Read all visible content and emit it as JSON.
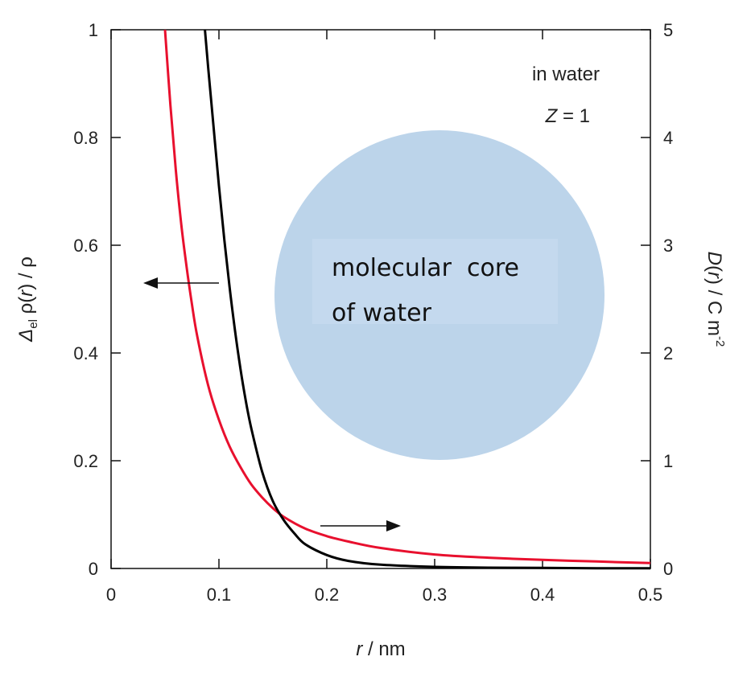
{
  "chart_data": {
    "type": "line",
    "xlabel": {
      "var": "r",
      "unit": " / nm"
    },
    "ylabel_left": {
      "delta": "Δ",
      "sub": "el",
      "rho1": " ρ(",
      "r": "r",
      "rho2": ") / ρ"
    },
    "ylabel_right": {
      "D": "D",
      "paren1": "(",
      "r": "r",
      "paren2": ") / C m",
      "sup": "-2"
    },
    "xlim": [
      0,
      0.5
    ],
    "ylim_left": [
      0,
      1
    ],
    "ylim_right": [
      0,
      5
    ],
    "x_ticks": [
      "0",
      "0.1",
      "0.2",
      "0.3",
      "0.4",
      "0.5"
    ],
    "y_ticks_left": [
      "0",
      "0.2",
      "0.4",
      "0.6",
      "0.8",
      "1"
    ],
    "y_ticks_right": [
      "0",
      "1",
      "2",
      "3",
      "4",
      "5"
    ],
    "series": [
      {
        "axis": "left",
        "color": "#000000",
        "x": [
          0.087,
          0.09,
          0.095,
          0.1,
          0.105,
          0.11,
          0.115,
          0.12,
          0.125,
          0.13,
          0.14,
          0.15,
          0.16,
          0.17,
          0.18,
          0.2,
          0.22,
          0.25,
          0.3,
          0.35,
          0.4,
          0.45,
          0.5
        ],
        "y": [
          1.0,
          0.93,
          0.82,
          0.71,
          0.61,
          0.52,
          0.44,
          0.37,
          0.31,
          0.26,
          0.18,
          0.125,
          0.09,
          0.065,
          0.045,
          0.025,
          0.014,
          0.007,
          0.003,
          0.0015,
          0.001,
          0.0005,
          0.0003
        ]
      },
      {
        "axis": "right",
        "color": "#e8102e",
        "x": [
          0.05,
          0.055,
          0.06,
          0.065,
          0.07,
          0.075,
          0.08,
          0.09,
          0.1,
          0.11,
          0.12,
          0.13,
          0.14,
          0.15,
          0.16,
          0.18,
          0.2,
          0.22,
          0.25,
          0.3,
          0.35,
          0.4,
          0.45,
          0.5
        ],
        "y": [
          5.0,
          4.3,
          3.7,
          3.2,
          2.8,
          2.45,
          2.15,
          1.7,
          1.38,
          1.13,
          0.94,
          0.78,
          0.66,
          0.56,
          0.48,
          0.37,
          0.3,
          0.25,
          0.19,
          0.13,
          0.1,
          0.08,
          0.065,
          0.05
        ]
      }
    ],
    "annotations": {
      "medium": "in water",
      "charge": {
        "var": "Z",
        "rest": " = 1"
      },
      "core_line1": "molecular  core",
      "core_line2": "of water"
    },
    "colors": {
      "circle_fill": "#bcd4ea",
      "label_box": "#c4d9ee"
    }
  }
}
